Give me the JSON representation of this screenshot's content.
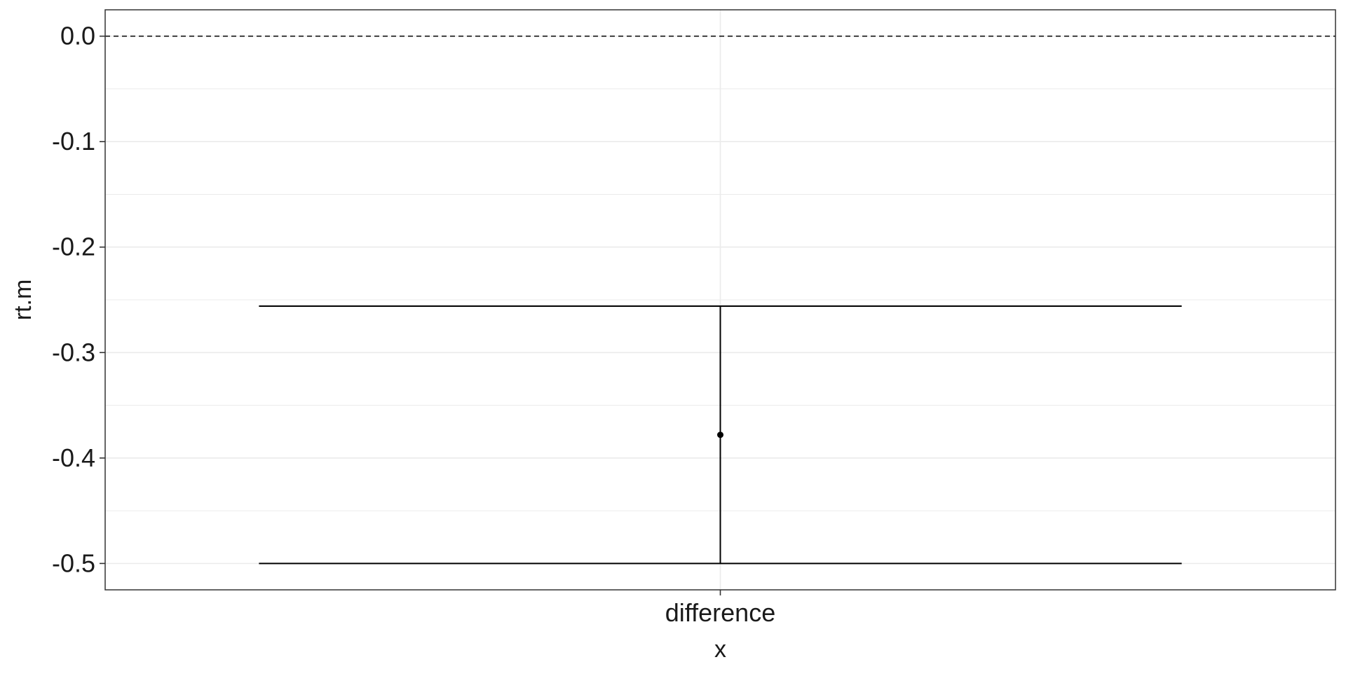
{
  "chart_data": {
    "type": "errorbar",
    "title": "",
    "xlabel": "x",
    "ylabel": "rt.m",
    "categories": [
      "difference"
    ],
    "points": [
      {
        "x": "difference",
        "y": -0.378,
        "ymin": -0.5,
        "ymax": -0.256
      }
    ],
    "reference_line": {
      "y": 0.0,
      "style": "dashed"
    },
    "ylim": [
      -0.525,
      0.025
    ],
    "yticks": [
      0.0,
      -0.1,
      -0.2,
      -0.3,
      -0.4,
      -0.5
    ],
    "ytick_labels": [
      "0.0",
      "-0.1",
      "-0.2",
      "-0.3",
      "-0.4",
      "-0.5"
    ],
    "grid": true,
    "legend": "none",
    "colors": {
      "mark": "#000000",
      "grid": "#ebebeb",
      "panel_border": "#333333"
    }
  }
}
